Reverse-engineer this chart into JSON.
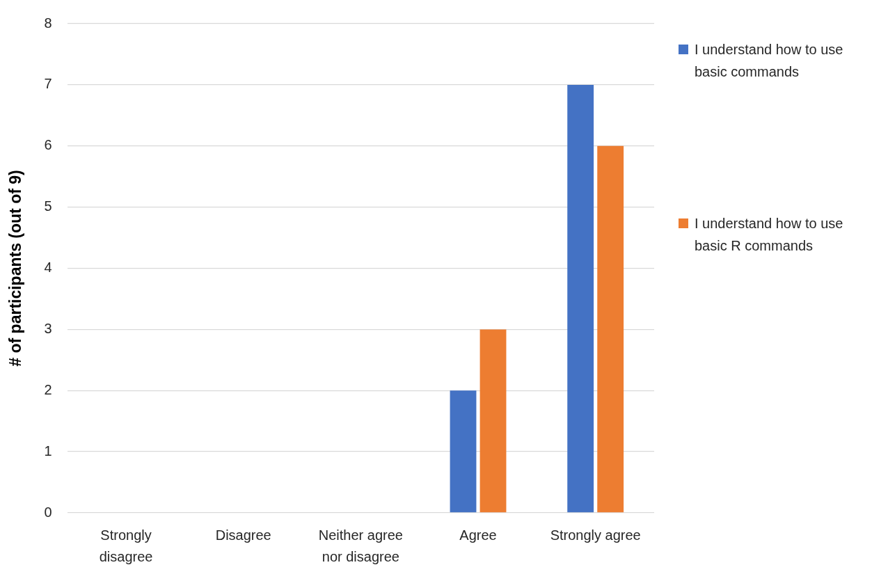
{
  "chart_data": {
    "type": "bar",
    "ylabel": "# of participants (out of 9)",
    "categories": [
      "Strongly disagree",
      "Disagree",
      "Neither agree nor disagree",
      "Agree",
      "Strongly agree"
    ],
    "series": [
      {
        "name": "I understand how to use basic commands",
        "color": "#4472c4",
        "values": [
          0,
          0,
          0,
          2,
          7
        ]
      },
      {
        "name": "I understand how to use basic R commands",
        "color": "#ed7d31",
        "values": [
          0,
          0,
          0,
          3,
          6
        ]
      }
    ],
    "ylim": [
      0,
      8
    ],
    "yticks": [
      0,
      1,
      2,
      3,
      4,
      5,
      6,
      7,
      8
    ],
    "grid": "y",
    "legend": "top right"
  }
}
